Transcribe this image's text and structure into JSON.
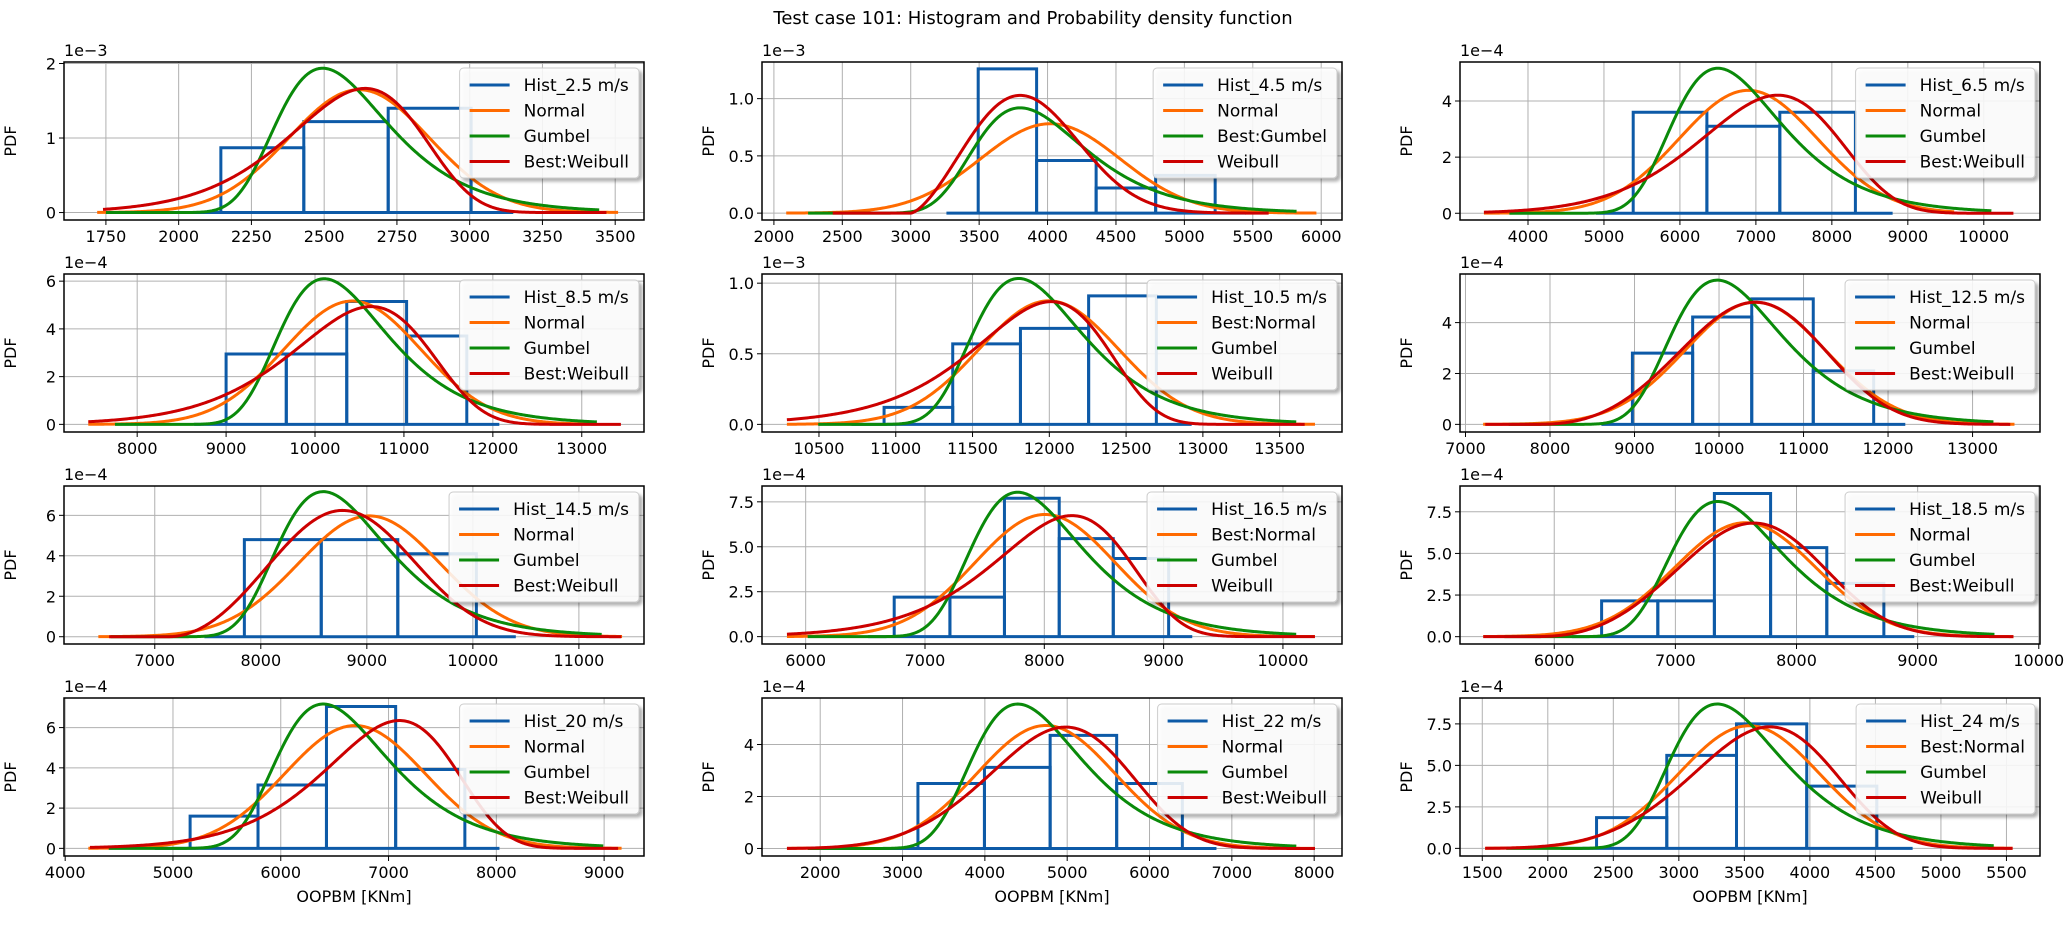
{
  "title": "Test case 101: Histogram and Probability density function",
  "colors": {
    "hist": "#0d5aa7",
    "normal": "#ff6a00",
    "gumbel": "#0a8a0a",
    "weibull": "#cc0000",
    "grid": "#b0b0b0"
  },
  "chart_data": [
    {
      "type": "histogram+line",
      "legend": [
        "Hist_2.5 m/s",
        "Normal",
        "Gumbel",
        "Best:Weibull"
      ],
      "offset_text": "1e−3",
      "y_exponent": -3,
      "ylabel": "PDF",
      "xlabel": "",
      "xlim": [
        1606,
        3599
      ],
      "ylim": [
        -0.1,
        2.02
      ],
      "xticks": [
        1750,
        2000,
        2250,
        2500,
        2750,
        3000,
        3250,
        3500
      ],
      "yticks": [
        0,
        1,
        2
      ],
      "ytick_labels": [
        "0",
        "1",
        "2"
      ],
      "histogram": {
        "edges": [
          2145,
          2430,
          2720,
          3005
        ],
        "heights": [
          0.87,
          1.22,
          1.4
        ],
        "range": [
          2000,
          3150
        ]
      },
      "normal": {
        "mean": 2620,
        "std": 242,
        "x_range": [
          1720,
          3510
        ]
      },
      "gumbel": {
        "loc": 2495,
        "scale": 190,
        "x_range": [
          1750,
          3445
        ]
      },
      "weibull": {
        "loc": 0,
        "scale": 2660,
        "shape": 12,
        "x_range": [
          1740,
          3470
        ]
      }
    },
    {
      "type": "histogram+line",
      "legend": [
        "Hist_4.5 m/s",
        "Normal",
        "Best:Gumbel",
        "Weibull"
      ],
      "offset_text": "1e−3",
      "y_exponent": -3,
      "ylabel": "PDF",
      "xlabel": "",
      "xlim": [
        1913,
        6152
      ],
      "ylim": [
        -0.06,
        1.32
      ],
      "xticks": [
        2000,
        2500,
        3000,
        3500,
        4000,
        4500,
        5000,
        5500,
        6000
      ],
      "yticks": [
        0,
        0.5,
        1.0
      ],
      "ytick_labels": [
        "0.0",
        "0.5",
        "1.0"
      ],
      "histogram": {
        "edges": [
          3493,
          3920,
          4355,
          4790,
          5225
        ],
        "heights": [
          1.26,
          0.46,
          0.22,
          0.33
        ],
        "range": [
          3261,
          5450
        ]
      },
      "normal": {
        "mean": 4020,
        "std": 511,
        "x_range": [
          2090,
          5965
        ]
      },
      "gumbel": {
        "loc": 3800,
        "scale": 400,
        "x_range": [
          2250,
          5820
        ]
      },
      "weibull": {
        "loc": 3000,
        "scale": 982,
        "shape": 2.5,
        "x_range": [
          2430,
          5616
        ]
      }
    },
    {
      "type": "histogram+line",
      "legend": [
        "Hist_6.5 m/s",
        "Normal",
        "Gumbel",
        "Best:Weibull"
      ],
      "offset_text": "1e−4",
      "y_exponent": -4,
      "ylabel": "PDF",
      "xlabel": "",
      "xlim": [
        3105,
        10740
      ],
      "ylim": [
        -0.24,
        5.39
      ],
      "xticks": [
        4000,
        5000,
        6000,
        7000,
        8000,
        9000,
        10000
      ],
      "yticks": [
        0,
        2,
        4
      ],
      "ytick_labels": [
        "0",
        "2",
        "4"
      ],
      "histogram": {
        "edges": [
          5385,
          6355,
          7315,
          8310
        ],
        "heights": [
          3.6,
          3.1,
          3.6
        ],
        "range": [
          4894,
          8800
        ]
      },
      "normal": {
        "mean": 6900,
        "std": 911,
        "x_range": [
          3420,
          9610
        ]
      },
      "gumbel": {
        "loc": 6500,
        "scale": 712,
        "x_range": [
          3755,
          10100
        ]
      },
      "weibull": {
        "loc": 0,
        "scale": 7400,
        "shape": 8.4,
        "x_range": [
          3420,
          10390
        ]
      }
    },
    {
      "type": "histogram+line",
      "legend": [
        "Hist_8.5 m/s",
        "Normal",
        "Gumbel",
        "Best:Weibull"
      ],
      "offset_text": "1e−4",
      "y_exponent": -4,
      "ylabel": "PDF",
      "xlabel": "",
      "xlim": [
        7177,
        13700
      ],
      "ylim": [
        -0.32,
        6.3
      ],
      "xticks": [
        8000,
        9000,
        10000,
        11000,
        12000,
        13000
      ],
      "yticks": [
        0,
        2,
        4,
        6
      ],
      "ytick_labels": [
        "0",
        "2",
        "4",
        "6"
      ],
      "histogram": {
        "edges": [
          9000,
          9677,
          10357,
          11030,
          11707
        ],
        "heights": [
          2.95,
          2.95,
          5.15,
          3.7
        ],
        "range": [
          8640,
          12073
        ]
      },
      "normal": {
        "mean": 10420,
        "std": 772,
        "x_range": [
          7450,
          13170
        ]
      },
      "gumbel": {
        "loc": 10104,
        "scale": 603,
        "x_range": [
          7750,
          13170
        ]
      },
      "weibull": {
        "loc": 0,
        "scale": 10685,
        "shape": 14.3,
        "x_range": [
          7450,
          13440
        ]
      }
    },
    {
      "type": "histogram+line",
      "legend": [
        "Hist_10.5 m/s",
        "Best:Normal",
        "Gumbel",
        "Weibull"
      ],
      "offset_text": "1e−3",
      "y_exponent": -3,
      "ylabel": "PDF",
      "xlabel": "",
      "xlim": [
        10129,
        13906
      ],
      "ylim": [
        -0.054,
        1.065
      ],
      "xticks": [
        10500,
        11000,
        11500,
        12000,
        12500,
        13000,
        13500
      ],
      "yticks": [
        0,
        0.5,
        1.0
      ],
      "ytick_labels": [
        "0.0",
        "0.5",
        "1.0"
      ],
      "histogram": {
        "edges": [
          10924,
          11371,
          11812,
          12256,
          12697
        ],
        "heights": [
          0.12,
          0.57,
          0.68,
          0.91
        ],
        "range": [
          10712,
          12927
        ]
      },
      "normal": {
        "mean": 11997,
        "std": 456,
        "x_range": [
          10291,
          13730
        ]
      },
      "gumbel": {
        "loc": 11800,
        "scale": 356,
        "x_range": [
          10495,
          13608
        ]
      },
      "weibull": {
        "loc": 0,
        "scale": 12027,
        "shape": 28.4,
        "x_range": [
          10291,
          13663
        ]
      }
    },
    {
      "type": "histogram+line",
      "legend": [
        "Hist_12.5 m/s",
        "Normal",
        "Gumbel",
        "Best:Weibull"
      ],
      "offset_text": "1e−4",
      "y_exponent": -4,
      "ylabel": "PDF",
      "xlabel": "",
      "xlim": [
        6935,
        13798
      ],
      "ylim": [
        -0.3,
        5.91
      ],
      "xticks": [
        7000,
        8000,
        9000,
        10000,
        11000,
        12000,
        13000
      ],
      "yticks": [
        0,
        2,
        4
      ],
      "ytick_labels": [
        "0",
        "2",
        "4"
      ],
      "histogram": {
        "edges": [
          8975,
          9688,
          10387,
          11115,
          11830
        ],
        "heights": [
          2.8,
          4.22,
          4.93,
          2.1
        ],
        "range": [
          8608,
          12204
        ]
      },
      "normal": {
        "mean": 10429,
        "std": 831,
        "x_range": [
          7209,
          13496
        ]
      },
      "gumbel": {
        "loc": 9980,
        "scale": 649,
        "x_range": [
          7511,
          13247
        ]
      },
      "weibull": {
        "loc": 7799,
        "scale": 2879,
        "shape": 3.6,
        "x_range": [
          7234,
          13446
        ]
      }
    },
    {
      "type": "histogram+line",
      "legend": [
        "Hist_14.5 m/s",
        "Normal",
        "Gumbel",
        "Best:Weibull"
      ],
      "offset_text": "1e−4",
      "y_exponent": -4,
      "ylabel": "PDF",
      "xlabel": "",
      "xlim": [
        6144,
        11614
      ],
      "ylim": [
        -0.36,
        7.45
      ],
      "xticks": [
        7000,
        8000,
        9000,
        10000,
        11000
      ],
      "yticks": [
        0,
        2,
        4,
        6
      ],
      "ytick_labels": [
        "0",
        "2",
        "4",
        "6"
      ],
      "histogram": {
        "edges": [
          7845,
          8570,
          9292,
          10033
        ],
        "heights": [
          4.8,
          4.8,
          4.1
        ],
        "range": [
          7468,
          10405
        ]
      },
      "normal": {
        "mean": 9023,
        "std": 668,
        "x_range": [
          6468,
          11407
        ]
      },
      "gumbel": {
        "loc": 8589,
        "scale": 513,
        "x_range": [
          6585,
          11215
        ]
      },
      "weibull": {
        "loc": 7127,
        "scale": 1883,
        "shape": 3,
        "x_range": [
          6570,
          11400
        ]
      }
    },
    {
      "type": "histogram+line",
      "legend": [
        "Hist_16.5 m/s",
        "Best:Normal",
        "Gumbel",
        "Weibull"
      ],
      "offset_text": "1e−4",
      "y_exponent": -4,
      "ylabel": "PDF",
      "xlabel": "",
      "xlim": [
        5634,
        10495
      ],
      "ylim": [
        -0.41,
        8.38
      ],
      "xticks": [
        6000,
        7000,
        8000,
        9000,
        10000
      ],
      "yticks": [
        0,
        2.5,
        5,
        7.5
      ],
      "ytick_labels": [
        "0.0",
        "2.5",
        "5.0",
        "7.5"
      ],
      "histogram": {
        "edges": [
          6742,
          7209,
          7666,
          8125,
          8578,
          9042
        ],
        "heights": [
          2.2,
          2.2,
          7.7,
          5.45,
          4.35
        ],
        "range": [
          6523,
          9240
        ]
      },
      "normal": {
        "mean": 8007,
        "std": 587,
        "x_range": [
          5843,
          10268
        ]
      },
      "gumbel": {
        "loc": 7777,
        "scale": 458,
        "x_range": [
          6017,
          10111
        ]
      },
      "weibull": {
        "loc": 0,
        "scale": 8269,
        "shape": 15.1,
        "x_range": [
          5843,
          10268
        ]
      }
    },
    {
      "type": "histogram+line",
      "legend": [
        "Hist_18.5 m/s",
        "Normal",
        "Gumbel",
        "Best:Weibull"
      ],
      "offset_text": "1e−4",
      "y_exponent": -4,
      "ylabel": "PDF",
      "xlabel": "",
      "xlim": [
        5222,
        10010
      ],
      "ylim": [
        -0.44,
        9.05
      ],
      "xticks": [
        6000,
        7000,
        8000,
        9000,
        10000
      ],
      "yticks": [
        0,
        2.5,
        5,
        7.5
      ],
      "ytick_labels": [
        "0.0",
        "2.5",
        "5.0",
        "7.5"
      ],
      "histogram": {
        "edges": [
          6391,
          6855,
          7322,
          7786,
          8250,
          8721
        ],
        "heights": [
          2.15,
          2.15,
          8.6,
          5.35,
          3.2
        ],
        "range": [
          6146,
          8972
        ]
      },
      "normal": {
        "mean": 7577,
        "std": 583,
        "x_range": [
          5414,
          9791
        ]
      },
      "gumbel": {
        "loc": 7350,
        "scale": 453,
        "x_range": [
          5588,
          9634
        ]
      },
      "weibull": {
        "loc": 5796,
        "scale": 2026,
        "shape": 3.6,
        "x_range": [
          5414,
          9791
        ]
      }
    },
    {
      "type": "histogram+line",
      "legend": [
        "Hist_20 m/s",
        "Normal",
        "Gumbel",
        "Best:Weibull"
      ],
      "offset_text": "1e−4",
      "y_exponent": -4,
      "ylabel": "PDF",
      "xlabel": "OOPBM [KNm]",
      "xlim": [
        3989,
        9370
      ],
      "ylim": [
        -0.38,
        7.47
      ],
      "xticks": [
        4000,
        5000,
        6000,
        7000,
        8000,
        9000
      ],
      "yticks": [
        0,
        2,
        4,
        6
      ],
      "ytick_labels": [
        "0",
        "2",
        "4",
        "6"
      ],
      "histogram": {
        "edges": [
          5159,
          5789,
          6424,
          7066,
          7708
        ],
        "heights": [
          1.6,
          3.15,
          7.05,
          3.92
        ],
        "range": [
          4831,
          8029
        ]
      },
      "normal": {
        "mean": 6689,
        "std": 654,
        "x_range": [
          4215,
          9162
        ]
      },
      "gumbel": {
        "loc": 6394,
        "scale": 513,
        "x_range": [
          4404,
          8992
        ]
      },
      "weibull": {
        "loc": 0,
        "scale": 7150,
        "shape": 12.3,
        "x_range": [
          4230,
          9130
        ]
      }
    },
    {
      "type": "histogram+line",
      "legend": [
        "Hist_22 m/s",
        "Normal",
        "Gumbel",
        "Best:Weibull"
      ],
      "offset_text": "1e−4",
      "y_exponent": -4,
      "ylabel": "PDF",
      "xlabel": "OOPBM [KNm]",
      "xlim": [
        1293,
        8338
      ],
      "ylim": [
        -0.29,
        5.79
      ],
      "xticks": [
        2000,
        3000,
        4000,
        5000,
        6000,
        7000,
        8000
      ],
      "yticks": [
        0,
        2,
        4
      ],
      "ytick_labels": [
        "0",
        "2",
        "4"
      ],
      "histogram": {
        "edges": [
          3187,
          3995,
          4793,
          5601,
          6399
        ],
        "heights": [
          2.5,
          3.12,
          4.35,
          2.5
        ],
        "range": [
          2758,
          6813
        ]
      },
      "normal": {
        "mean": 4742,
        "std": 843,
        "x_range": [
          1596,
          8010
        ]
      },
      "gumbel": {
        "loc": 4399,
        "scale": 662,
        "x_range": [
          1848,
          7783
        ]
      },
      "weibull": {
        "loc": 1132,
        "scale": 4024,
        "shape": 5,
        "x_range": [
          1596,
          8010
        ]
      }
    },
    {
      "type": "histogram+line",
      "legend": [
        "Hist_24 m/s",
        "Best:Normal",
        "Gumbel",
        "Weibull"
      ],
      "offset_text": "1e−4",
      "y_exponent": -4,
      "ylabel": "PDF",
      "xlabel": "OOPBM [KNm]",
      "xlim": [
        1330,
        5756
      ],
      "ylim": [
        -0.46,
        9.06
      ],
      "xticks": [
        1500,
        2000,
        2500,
        3000,
        3500,
        4000,
        4500,
        5000,
        5500
      ],
      "yticks": [
        0,
        2.5,
        5,
        7.5
      ],
      "ytick_labels": [
        "0.0",
        "2.5",
        "5.0",
        "7.5"
      ],
      "histogram": {
        "edges": [
          2372,
          2908,
          3440,
          3976,
          4511
        ],
        "heights": [
          1.85,
          5.6,
          7.5,
          3.75
        ],
        "range": [
          2100,
          4784
        ]
      },
      "normal": {
        "mean": 3536,
        "std": 540,
        "x_range": [
          1522,
          5547
        ]
      },
      "gumbel": {
        "loc": 3293,
        "scale": 423,
        "x_range": [
          1683,
          5403
        ]
      },
      "weibull": {
        "loc": 1239,
        "scale": 2567,
        "shape": 5,
        "x_range": [
          1522,
          5547
        ]
      }
    }
  ]
}
